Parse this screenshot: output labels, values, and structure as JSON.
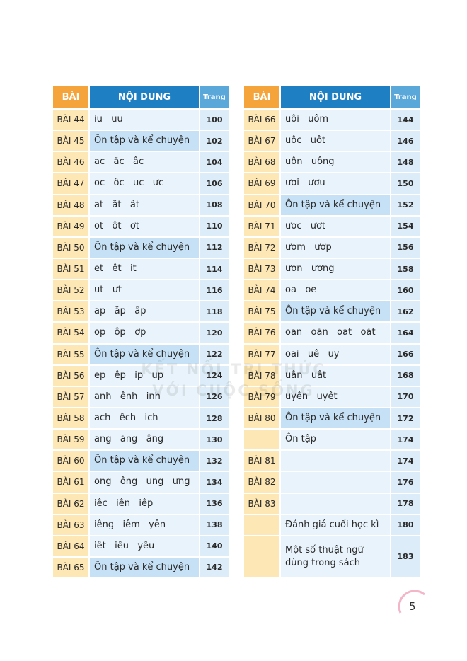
{
  "tables": [
    {
      "header": [
        "BÀI",
        "NỘI DUNG",
        "Trang"
      ],
      "rows": [
        {
          "lesson": "BÀI 44",
          "content": "iu   ưu",
          "page": 100
        },
        {
          "lesson": "BÀI 45",
          "content": "Ôn tập và kể chuyện",
          "page": 102,
          "highlight": true
        },
        {
          "lesson": "BÀI 46",
          "content": "ac   ăc   âc",
          "page": 104
        },
        {
          "lesson": "BÀI 47",
          "content": "oc   ôc   uc   ưc",
          "page": 106
        },
        {
          "lesson": "BÀI 48",
          "content": "at   ăt   ât",
          "page": 108
        },
        {
          "lesson": "BÀI 49",
          "content": "ot   ôt   ơt",
          "page": 110
        },
        {
          "lesson": "BÀI 50",
          "content": "Ôn tập và kể chuyện",
          "page": 112,
          "highlight": true
        },
        {
          "lesson": "BÀI 51",
          "content": "et   êt   it",
          "page": 114
        },
        {
          "lesson": "BÀI 52",
          "content": "ut   ưt",
          "page": 116
        },
        {
          "lesson": "BÀI 53",
          "content": "ap   ăp   âp",
          "page": 118
        },
        {
          "lesson": "BÀI 54",
          "content": "op   ôp   ơp",
          "page": 120
        },
        {
          "lesson": "BÀI 55",
          "content": "Ôn tập và kể chuyện",
          "page": 122,
          "highlight": true
        },
        {
          "lesson": "BÀI 56",
          "content": "ep   êp   ip   up",
          "page": 124
        },
        {
          "lesson": "BÀI 57",
          "content": "anh   ênh   inh",
          "page": 126
        },
        {
          "lesson": "BÀI 58",
          "content": "ach   êch   ich",
          "page": 128
        },
        {
          "lesson": "BÀI 59",
          "content": "ang   ăng   âng",
          "page": 130
        },
        {
          "lesson": "BÀI 60",
          "content": "Ôn tập và kể chuyện",
          "page": 132,
          "highlight": true
        },
        {
          "lesson": "BÀI 61",
          "content": "ong   ông   ung   ưng",
          "page": 134
        },
        {
          "lesson": "BÀI 62",
          "content": "iêc   iên   iêp",
          "page": 136
        },
        {
          "lesson": "BÀI 63",
          "content": "iêng   iêm   yên",
          "page": 138
        },
        {
          "lesson": "BÀI 64",
          "content": "iêt   iêu   yêu",
          "page": 140
        },
        {
          "lesson": "BÀI 65",
          "content": "Ôn tập và kể chuyện",
          "page": 142,
          "highlight": true
        }
      ]
    },
    {
      "header": [
        "BÀI",
        "NỘI DUNG",
        "Trang"
      ],
      "rows": [
        {
          "lesson": "BÀI 66",
          "content": "uôi   uôm",
          "page": 144
        },
        {
          "lesson": "BÀI 67",
          "content": "uôc   uôt",
          "page": 146
        },
        {
          "lesson": "BÀI 68",
          "content": "uôn   uông",
          "page": 148
        },
        {
          "lesson": "BÀI 69",
          "content": "ươi   ươu",
          "page": 150
        },
        {
          "lesson": "BÀI 70",
          "content": "Ôn tập và kể chuyện",
          "page": 152,
          "highlight": true
        },
        {
          "lesson": "BÀI 71",
          "content": "ươc   ươt",
          "page": 154
        },
        {
          "lesson": "BÀI 72",
          "content": "ươm   ươp",
          "page": 156
        },
        {
          "lesson": "BÀI 73",
          "content": "ươn   ương",
          "page": 158
        },
        {
          "lesson": "BÀI 74",
          "content": "oa   oe",
          "page": 160
        },
        {
          "lesson": "BÀI 75",
          "content": "Ôn tập và kể chuyện",
          "page": 162,
          "highlight": true
        },
        {
          "lesson": "BÀI 76",
          "content": "oan   oăn   oat   oăt",
          "page": 164
        },
        {
          "lesson": "BÀI 77",
          "content": "oai   uê   uy",
          "page": 166
        },
        {
          "lesson": "BÀI 78",
          "content": "uân   uât",
          "page": 168
        },
        {
          "lesson": "BÀI 79",
          "content": "uyên   uyêt",
          "page": 170
        },
        {
          "lesson": "BÀI 80",
          "content": "Ôn tập và kể chuyện",
          "page": 172,
          "highlight": true
        },
        {
          "lesson": null,
          "content": "Ôn tập",
          "page": 174
        },
        {
          "lesson": "BÀI 81",
          "content": null,
          "page": 174
        },
        {
          "lesson": "BÀI 82",
          "content": null,
          "page": 176
        },
        {
          "lesson": "BÀI 83",
          "content": null,
          "page": 178
        },
        {
          "lesson": null,
          "content": "Đánh giá cuối học kì",
          "page": 180
        },
        {
          "lesson": null,
          "content": "Một số thuật ngữ dùng trong sách",
          "page": 183
        }
      ]
    }
  ],
  "watermark": [
    "KẾT NỐI TRI THỨC",
    "VỚI CUỘC SỐNG"
  ],
  "page_number": "5"
}
